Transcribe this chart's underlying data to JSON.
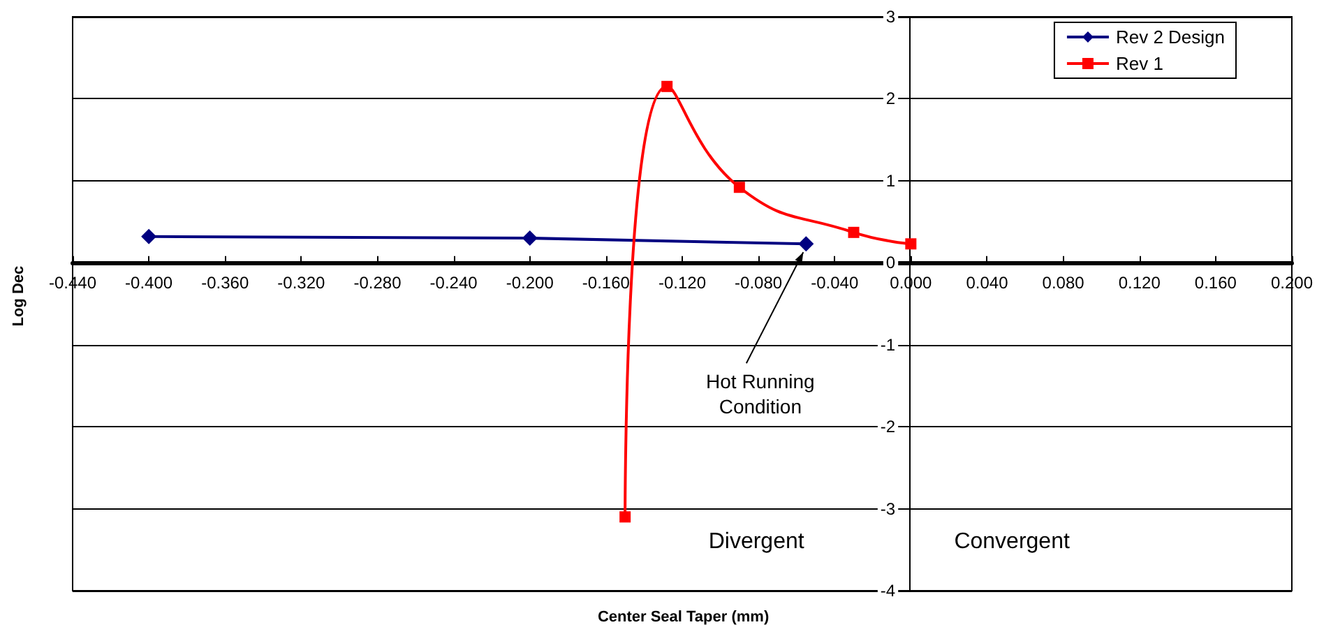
{
  "chart_data": {
    "type": "line",
    "xlabel": "Center Seal Taper (mm)",
    "ylabel": "Log Dec",
    "xlim": [
      -0.44,
      0.2
    ],
    "ylim": [
      -4,
      3
    ],
    "xticks": [
      {
        "value": -0.44,
        "label": "-0.440"
      },
      {
        "value": -0.4,
        "label": "-0.400"
      },
      {
        "value": -0.36,
        "label": "-0.360"
      },
      {
        "value": -0.32,
        "label": "-0.320"
      },
      {
        "value": -0.28,
        "label": "-0.280"
      },
      {
        "value": -0.24,
        "label": "-0.240"
      },
      {
        "value": -0.2,
        "label": "-0.200"
      },
      {
        "value": -0.16,
        "label": "-0.160"
      },
      {
        "value": -0.12,
        "label": "-0.120"
      },
      {
        "value": -0.08,
        "label": "-0.080"
      },
      {
        "value": -0.04,
        "label": "-0.040"
      },
      {
        "value": 0,
        "label": "0.000"
      },
      {
        "value": 0.04,
        "label": "0.040"
      },
      {
        "value": 0.08,
        "label": "0.080"
      },
      {
        "value": 0.12,
        "label": "0.120"
      },
      {
        "value": 0.16,
        "label": "0.160"
      },
      {
        "value": 0.2,
        "label": "0.200"
      }
    ],
    "yticks": [
      -4,
      -3,
      -2,
      -1,
      0,
      1,
      2,
      3
    ],
    "grid": "y",
    "legend": "top right",
    "series": [
      {
        "name": "Rev 2 Design",
        "color": "#000080",
        "marker": "diamond",
        "x": [
          -0.4,
          -0.2,
          -0.055
        ],
        "values": [
          0.32,
          0.3,
          0.23
        ]
      },
      {
        "name": "Rev 1",
        "color": "#ff0000",
        "marker": "square",
        "x": [
          -0.15,
          -0.128,
          -0.09,
          -0.03,
          0.0
        ],
        "values": [
          -3.1,
          2.15,
          0.92,
          0.37,
          0.23
        ]
      }
    ],
    "annotations": [
      {
        "text": "Hot Running Condition",
        "x": -0.055,
        "y": 0.23
      },
      "Divergent",
      "Convergent"
    ]
  }
}
